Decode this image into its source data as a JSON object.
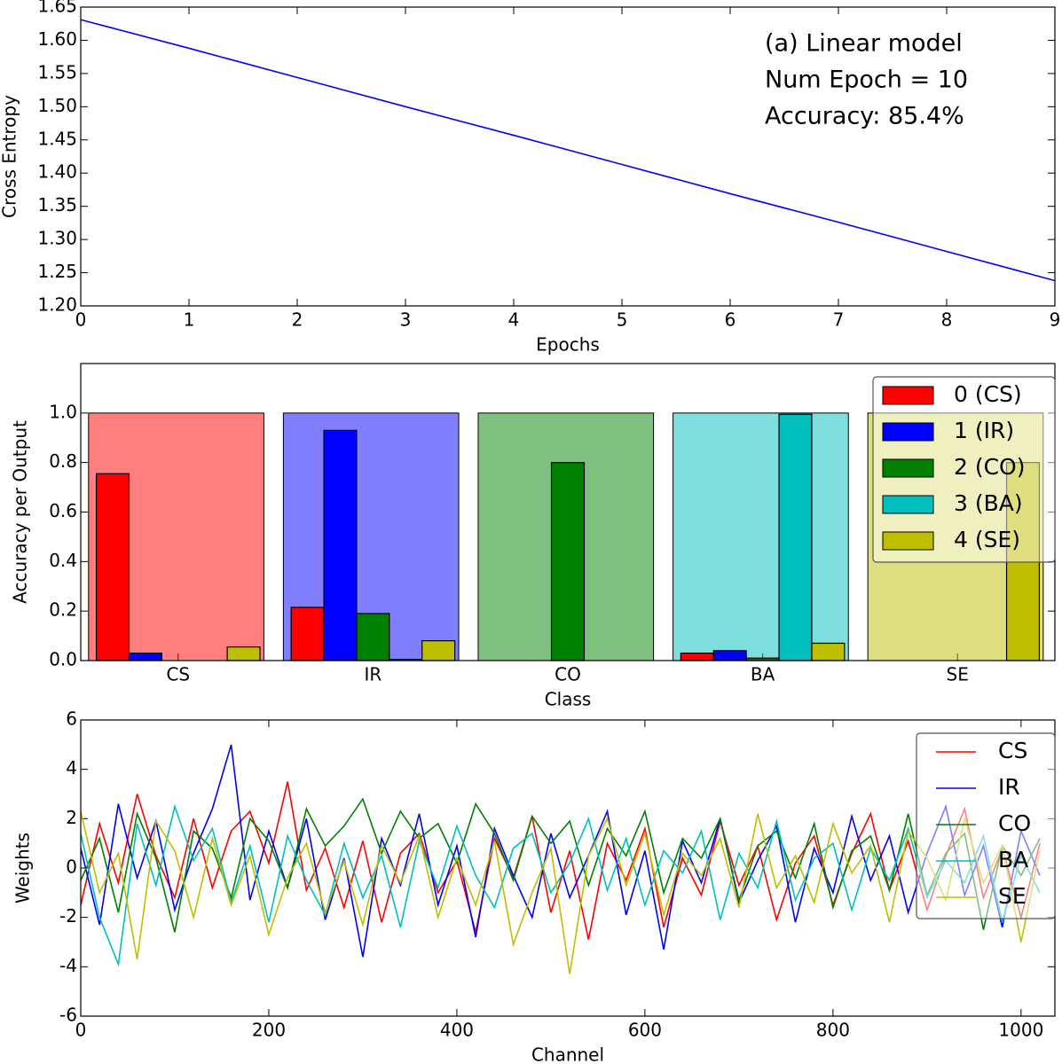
{
  "chart_data": [
    {
      "type": "line",
      "xlabel": "Epochs",
      "ylabel": "Cross Entropy",
      "annotations": [
        "(a) Linear model",
        "Num Epoch = 10",
        "Accuracy: 85.4%"
      ],
      "x": [
        0,
        1,
        2,
        3,
        4,
        5,
        6,
        7,
        8,
        9
      ],
      "values": [
        1.631,
        1.588,
        1.544,
        1.5,
        1.457,
        1.413,
        1.369,
        1.326,
        1.282,
        1.238
      ],
      "color": "#0000ff",
      "xlim": [
        0,
        9
      ],
      "xticks": [
        0,
        1,
        2,
        3,
        4,
        5,
        6,
        7,
        8,
        9
      ],
      "ylim": [
        1.2,
        1.65
      ],
      "yticks": [
        {
          "value": 1.2,
          "label": "1.20"
        },
        1.25,
        {
          "value": 1.3,
          "label": "1.30"
        },
        1.35,
        {
          "value": 1.4,
          "label": "1.40"
        },
        1.45,
        {
          "value": 1.5,
          "label": "1.50"
        },
        1.55,
        {
          "value": 1.6,
          "label": "1.60"
        },
        1.65
      ]
    },
    {
      "type": "bar",
      "xlabel": "Class",
      "ylabel": "Accuracy per Output",
      "categories": [
        "CS",
        "IR",
        "CO",
        "BA",
        "SE"
      ],
      "class_totals": [
        1,
        1,
        1,
        1,
        1
      ],
      "series": [
        {
          "name": "0 (CS)",
          "color": "#ff0000",
          "values": [
            0.755,
            0.215,
            0,
            0.03,
            0
          ]
        },
        {
          "name": "1 (IR)",
          "color": "#0000ff",
          "values": [
            0.03,
            0.93,
            0,
            0.04,
            0
          ]
        },
        {
          "name": "2 (CO)",
          "color": "#008000",
          "values": [
            0,
            0.19,
            0.8,
            0.01,
            0
          ]
        },
        {
          "name": "3 (BA)",
          "color": "#00bfbf",
          "values": [
            0,
            0.005,
            0,
            0.995,
            0
          ]
        },
        {
          "name": "4 (SE)",
          "color": "#bfbf00",
          "values": [
            0.055,
            0.08,
            0,
            0.07,
            0.8
          ]
        }
      ],
      "ylim": [
        0,
        1.2
      ],
      "yticks": [
        {
          "value": 0,
          "label": "0.0"
        },
        0.2,
        0.4,
        0.6,
        0.8,
        {
          "value": 1,
          "label": "1.0"
        }
      ],
      "legend": "upper right"
    },
    {
      "type": "line",
      "xlabel": "Channel",
      "ylabel": "Weights",
      "x": [
        0,
        20,
        40,
        60,
        80,
        100,
        120,
        140,
        160,
        180,
        200,
        220,
        240,
        260,
        280,
        300,
        320,
        340,
        360,
        380,
        400,
        420,
        440,
        460,
        480,
        500,
        520,
        540,
        560,
        580,
        600,
        620,
        640,
        660,
        680,
        700,
        720,
        740,
        760,
        780,
        800,
        820,
        840,
        860,
        880,
        900,
        920,
        940,
        960,
        980,
        1000,
        1020
      ],
      "series": [
        {
          "name": "CS",
          "color": "#ff0000",
          "values": [
            -1.5,
            1.8,
            -0.6,
            3.0,
            0.5,
            -1.2,
            2.0,
            -0.8,
            1.5,
            2.3,
            0.2,
            3.5,
            -0.9,
            0.8,
            -1.6,
            1.1,
            -2.2,
            0.6,
            1.4,
            -1.0,
            0.3,
            -2.6,
            1.2,
            -0.4,
            2.1,
            -1.8,
            0.7,
            -2.9,
            1.0,
            -0.5,
            1.6,
            -2.4,
            0.4,
            -1.1,
            1.9,
            -0.7,
            0.9,
            -2.1,
            0.2,
            1.3,
            -1.5,
            0.6,
            2.2,
            -0.9,
            1.1,
            -1.7,
            0.5,
            2.4,
            -1.2,
            0.8,
            -2.0,
            1.0
          ]
        },
        {
          "name": "IR",
          "color": "#0000ff",
          "values": [
            0.8,
            -2.3,
            2.6,
            -0.4,
            1.9,
            -1.7,
            0.6,
            2.4,
            5.0,
            -1.3,
            1.5,
            -0.8,
            2.0,
            -2.1,
            0.4,
            -3.6,
            1.2,
            -0.7,
            2.2,
            -1.5,
            0.9,
            -2.8,
            1.6,
            -0.3,
            -2.0,
            1.4,
            -1.2,
            0.5,
            2.3,
            -1.9,
            0.7,
            -3.3,
            1.1,
            -0.6,
            2.0,
            -1.4,
            0.3,
            1.7,
            -2.2,
            0.8,
            -1.0,
            2.1,
            -0.5,
            1.3,
            -1.8,
            0.6,
            2.5,
            -1.1,
            0.9,
            -2.4,
            1.5,
            -0.3
          ]
        },
        {
          "name": "CO",
          "color": "#008000",
          "values": [
            -0.5,
            1.2,
            -1.8,
            2.2,
            0.4,
            -2.6,
            1.5,
            0.8,
            -1.2,
            2.0,
            1.1,
            -0.8,
            2.4,
            0.9,
            1.7,
            2.8,
            0.6,
            2.3,
            1.2,
            1.8,
            0.2,
            2.6,
            1.4,
            -0.5,
            2.1,
            1.0,
            1.9,
            -0.7,
            1.6,
            0.5,
            2.3,
            -1.0,
            1.2,
            0.4,
            2.0,
            -1.3,
            0.9,
            1.5,
            -0.4,
            1.8,
            -1.6,
            0.7,
            1.3,
            -0.9,
            2.2,
            -1.1,
            0.6,
            1.4,
            -2.5,
            0.9,
            -0.3,
            1.2
          ]
        },
        {
          "name": "BA",
          "color": "#00bfbf",
          "values": [
            1.4,
            -2.0,
            -3.9,
            1.8,
            -0.7,
            2.5,
            0.3,
            1.6,
            -1.4,
            0.9,
            -2.2,
            1.3,
            -0.5,
            -1.9,
            1.0,
            -1.2,
            0.5,
            -2.4,
            1.1,
            -0.8,
            1.7,
            -0.3,
            -1.6,
            0.8,
            1.4,
            -1.0,
            0.2,
            2.0,
            -0.9,
            1.2,
            -1.5,
            0.7,
            -0.2,
            1.5,
            -2.1,
            0.6,
            -0.8,
            1.9,
            -1.3,
            0.4,
            1.0,
            -1.7,
            0.8,
            -0.5,
            1.6,
            -1.2,
            0.3,
            -0.6,
            1.3,
            -2.2,
            0.5,
            -1.0
          ]
        },
        {
          "name": "SE",
          "color": "#bfbf00",
          "values": [
            2.3,
            -1.0,
            0.6,
            -3.7,
            1.9,
            0.7,
            -2.0,
            1.2,
            -1.5,
            0.5,
            -2.7,
            -0.4,
            1.0,
            -1.8,
            0.3,
            -2.3,
            0.9,
            -0.6,
            1.3,
            -2.0,
            0.4,
            -1.5,
            1.1,
            -3.1,
            -1.0,
            0.8,
            -4.3,
            0.5,
            2.0,
            -0.7,
            1.4,
            -1.9,
            0.6,
            -0.3,
            1.2,
            -1.6,
            2.2,
            -0.8,
            0.5,
            -1.4,
            1.8,
            -0.2,
            0.9,
            -2.2,
            1.5,
            0.4,
            -1.3,
            2.0,
            -0.6,
            0.9,
            -3.0,
            0.7
          ]
        }
      ],
      "xlim": [
        0,
        1036
      ],
      "xticks": [
        0,
        200,
        400,
        600,
        800,
        1000
      ],
      "ylim": [
        -6,
        6
      ],
      "yticks": [
        -6,
        -4,
        -2,
        0,
        2,
        4,
        6
      ],
      "legend": "upper right"
    }
  ]
}
